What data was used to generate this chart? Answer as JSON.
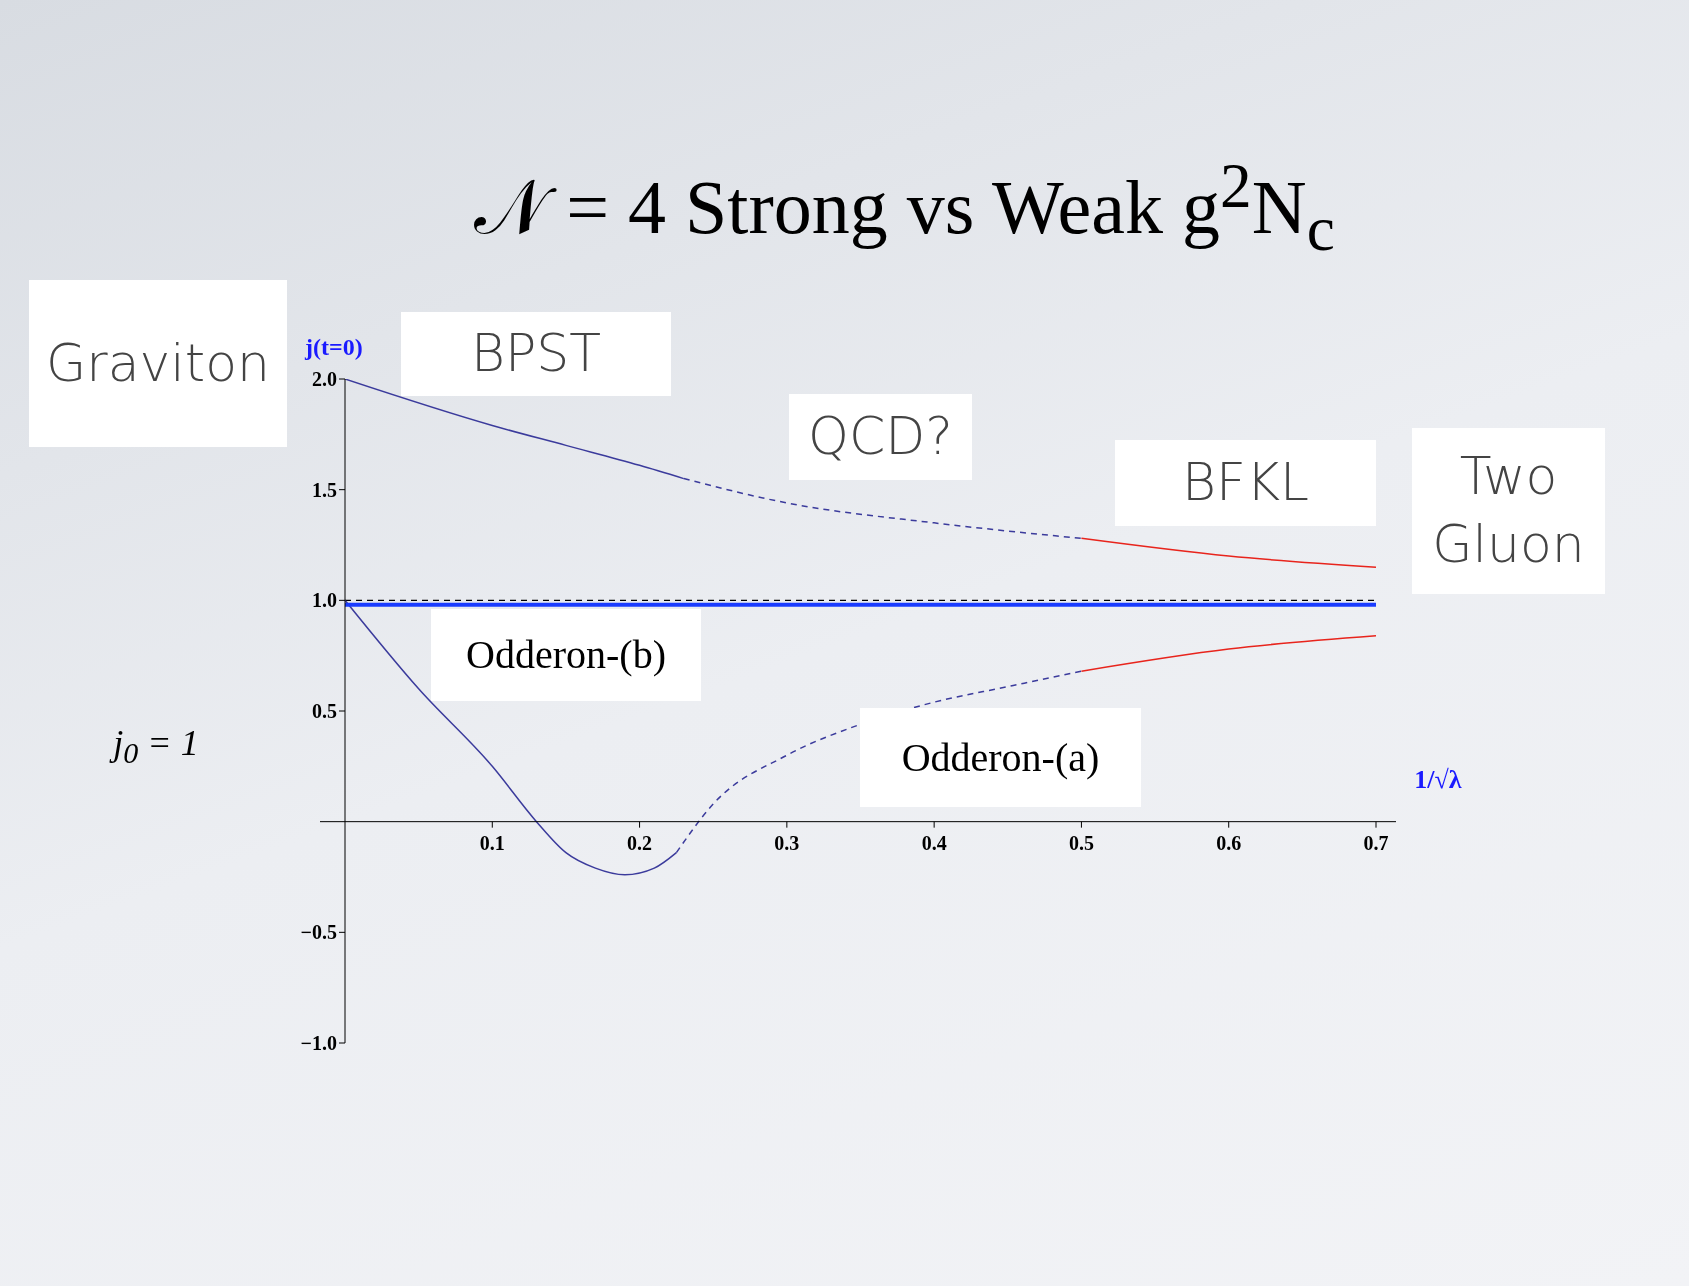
{
  "chart_data": {
    "type": "line",
    "title": "𝒩 = 4 Strong vs Weak g$^{2}$N$_{c}$",
    "xlabel": "1/√λ",
    "ylabel": "j(t=0)",
    "xlim": [
      0,
      0.7
    ],
    "ylim": [
      -1,
      2
    ],
    "xticks": [
      0.1,
      0.2,
      0.3,
      0.4,
      0.5,
      0.6,
      0.7
    ],
    "yticks": [
      {
        "value": -1,
        "label": "−1.0"
      },
      -0.5,
      0.5,
      {
        "value": 1,
        "label": "1.0"
      },
      1.5,
      {
        "value": 2,
        "label": "2.0"
      }
    ],
    "marker": "none",
    "series": [
      {
        "color": "#3b3b9c",
        "line_style": "solid",
        "x": [
          0,
          0.1,
          0.15,
          0.2,
          0.23
        ],
        "values": [
          2.0,
          1.79,
          1.7,
          1.61,
          1.55
        ]
      },
      {
        "color": "#3b3b9c",
        "line_style": "dashed",
        "x": [
          0.23,
          0.3,
          0.4,
          0.5
        ],
        "values": [
          1.55,
          1.44,
          1.35,
          1.28
        ]
      },
      {
        "color": "#e8241c",
        "line_style": "solid",
        "x": [
          0.5,
          0.6,
          0.7
        ],
        "values": [
          1.28,
          1.2,
          1.15
        ]
      },
      {
        "color": "#3b3b9c",
        "line_style": "solid",
        "x": [
          0,
          0.05,
          0.1,
          0.13,
          0.15,
          0.17,
          0.19,
          0.21,
          0.225
        ],
        "values": [
          1.0,
          0.6,
          0.25,
          0.0,
          -0.14,
          -0.21,
          -0.24,
          -0.21,
          -0.14
        ]
      },
      {
        "color": "#3b3b9c",
        "line_style": "dashed",
        "x": [
          0.225,
          0.25,
          0.3,
          0.35,
          0.4,
          0.45,
          0.5
        ],
        "values": [
          -0.14,
          0.08,
          0.3,
          0.44,
          0.54,
          0.61,
          0.68
        ]
      },
      {
        "color": "#e8241c",
        "line_style": "solid",
        "x": [
          0.5,
          0.6,
          0.7
        ],
        "values": [
          0.68,
          0.78,
          0.84
        ]
      },
      {
        "color": "#1a3cff",
        "line_style": "solid",
        "x": [
          0,
          0.7
        ],
        "values": [
          0.98,
          0.98
        ]
      }
    ],
    "ref_lines": [
      {
        "axis": "y",
        "value": 1.0,
        "color": "#000000",
        "line_style": "dashed"
      }
    ],
    "annotations": [
      "Graviton",
      "BPST",
      "QCD?",
      "BFKL",
      "Two Gluon",
      "Odderon-(b)",
      "Odderon-(a)",
      "j$_{0}$ = 1"
    ]
  }
}
